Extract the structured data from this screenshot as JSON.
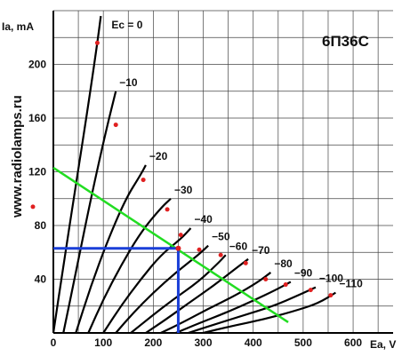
{
  "chart_data": {
    "type": "line",
    "title": "6П36С",
    "watermark": "www.radiolamps.ru",
    "xlabel": "Ea, V",
    "ylabel": "Ia, mA",
    "xlim": [
      0,
      680
    ],
    "ylim": [
      0,
      240
    ],
    "xticks": [
      "0",
      "100",
      "200",
      "300",
      "400",
      "500",
      "600"
    ],
    "yticks": [
      "40",
      "80",
      "120",
      "160",
      "200"
    ],
    "grid": true,
    "colors": {
      "curves": "#000000",
      "load_line": "#22dd22",
      "operating_point": "#1a3fd8",
      "dot": "#e02020"
    },
    "series": [
      {
        "label": "Ec = 0",
        "points": [
          [
            0,
            0
          ],
          [
            20,
            50
          ],
          [
            45,
            110
          ],
          [
            70,
            170
          ],
          [
            88,
            216
          ],
          [
            95,
            236
          ]
        ],
        "dot": [
          88,
          216
        ]
      },
      {
        "label": "−10",
        "points": [
          [
            20,
            0
          ],
          [
            45,
            45
          ],
          [
            75,
            100
          ],
          [
            105,
            150
          ],
          [
            125,
            180
          ]
        ],
        "dot": [
          125,
          155
        ]
      },
      {
        "label": "−20",
        "points": [
          [
            45,
            0
          ],
          [
            75,
            35
          ],
          [
            110,
            70
          ],
          [
            145,
            100
          ],
          [
            175,
            118
          ],
          [
            185,
            125
          ]
        ],
        "dot": [
          180,
          114
        ]
      },
      {
        "label": "−30",
        "points": [
          [
            70,
            0
          ],
          [
            100,
            25
          ],
          [
            135,
            50
          ],
          [
            175,
            75
          ],
          [
            215,
            93
          ],
          [
            235,
            100
          ]
        ],
        "dot": [
          228,
          92
        ]
      },
      {
        "label": "−40",
        "points": [
          [
            100,
            0
          ],
          [
            135,
            20
          ],
          [
            175,
            40
          ],
          [
            215,
            58
          ],
          [
            255,
            70
          ],
          [
            275,
            78
          ]
        ],
        "dot": [
          255,
          73
        ]
      },
      {
        "label": "−50",
        "points": [
          [
            125,
            0
          ],
          [
            160,
            15
          ],
          [
            200,
            30
          ],
          [
            245,
            45
          ],
          [
            290,
            58
          ],
          [
            310,
            65
          ]
        ],
        "dot": [
          292,
          62
        ]
      },
      {
        "label": "−60",
        "points": [
          [
            155,
            0
          ],
          [
            195,
            12
          ],
          [
            240,
            25
          ],
          [
            290,
            38
          ],
          [
            330,
            52
          ],
          [
            345,
            58
          ]
        ],
        "dot": [
          335,
          58
        ]
      },
      {
        "label": "−70",
        "points": [
          [
            185,
            0
          ],
          [
            225,
            10
          ],
          [
            270,
            22
          ],
          [
            320,
            35
          ],
          [
            365,
            48
          ],
          [
            390,
            55
          ]
        ],
        "dot": [
          385,
          52
        ]
      },
      {
        "label": "−80",
        "points": [
          [
            215,
            0
          ],
          [
            260,
            8
          ],
          [
            310,
            18
          ],
          [
            365,
            28
          ],
          [
            410,
            38
          ],
          [
            435,
            45
          ]
        ],
        "dot": [
          425,
          40
        ]
      },
      {
        "label": "−90",
        "points": [
          [
            245,
            0
          ],
          [
            290,
            7
          ],
          [
            345,
            15
          ],
          [
            400,
            24
          ],
          [
            445,
            32
          ],
          [
            475,
            38
          ]
        ],
        "dot": [
          465,
          36
        ]
      },
      {
        "label": "−100",
        "points": [
          [
            270,
            0
          ],
          [
            320,
            6
          ],
          [
            380,
            13
          ],
          [
            440,
            20
          ],
          [
            490,
            28
          ],
          [
            525,
            34
          ]
        ],
        "dot": [
          515,
          32
        ]
      },
      {
        "label": "−110",
        "points": [
          [
            300,
            0
          ],
          [
            355,
            5
          ],
          [
            420,
            10
          ],
          [
            480,
            16
          ],
          [
            530,
            22
          ],
          [
            565,
            30
          ]
        ],
        "dot": [
          555,
          28
        ]
      }
    ],
    "load_line": [
      [
        0,
        123
      ],
      [
        470,
        8
      ]
    ],
    "operating_point": [
      250,
      63
    ],
    "extra_dot": [
      -40,
      90
    ]
  }
}
